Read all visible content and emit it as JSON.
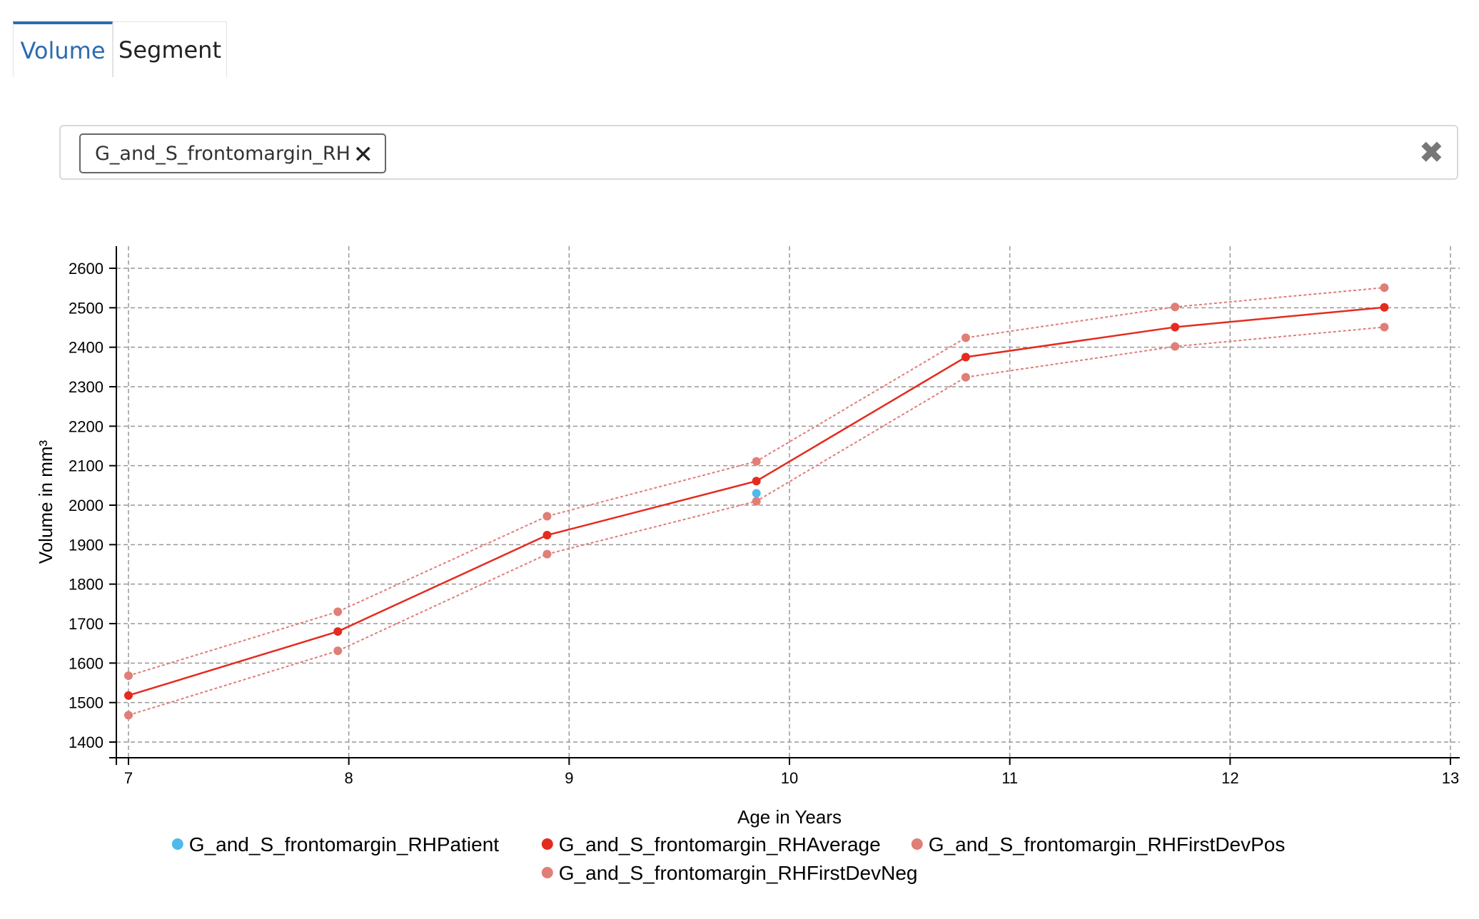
{
  "tabs": [
    {
      "label": "Volume",
      "active": true
    },
    {
      "label": "Segment",
      "active": false
    }
  ],
  "selector": {
    "chip_label": "G_and_S_frontomargin_RH",
    "chip_remove_glyph": "✕",
    "clear_glyph": "✖"
  },
  "chart_data": {
    "type": "line",
    "xlabel": "Age in Years",
    "ylabel": "Volume in mm³",
    "xlim": [
      6.95,
      13.05
    ],
    "ylim": [
      1355,
      2660
    ],
    "xticks": [
      7,
      8,
      9,
      10,
      11,
      12,
      13
    ],
    "yticks": [
      1400,
      1500,
      1600,
      1700,
      1800,
      1900,
      2000,
      2100,
      2200,
      2300,
      2400,
      2500,
      2600
    ],
    "grid": true,
    "legend_position": "bottom",
    "series": [
      {
        "name": "G_and_S_frontomargin_RHPatient",
        "color": "#4fb9ec",
        "style": "points",
        "x": [
          9.85
        ],
        "y": [
          2030
        ]
      },
      {
        "name": "G_and_S_frontomargin_RHAverage",
        "color": "#e32c1f",
        "style": "solid",
        "x": [
          7,
          7.95,
          8.9,
          9.85,
          10.8,
          11.75,
          12.7
        ],
        "y": [
          1518,
          1680,
          1924,
          2061,
          2375,
          2451,
          2501
        ]
      },
      {
        "name": "G_and_S_frontomargin_RHFirstDevPos",
        "color": "#e07e78",
        "style": "dotted",
        "x": [
          7,
          7.95,
          8.9,
          9.85,
          10.8,
          11.75,
          12.7
        ],
        "y": [
          1568,
          1730,
          1972,
          2111,
          2424,
          2502,
          2551
        ]
      },
      {
        "name": "G_and_S_frontomargin_RHFirstDevNeg",
        "color": "#e07e78",
        "style": "dotted",
        "x": [
          7,
          7.95,
          8.9,
          9.85,
          10.8,
          11.75,
          12.7
        ],
        "y": [
          1468,
          1631,
          1876,
          2010,
          2324,
          2402,
          2451
        ]
      }
    ]
  }
}
